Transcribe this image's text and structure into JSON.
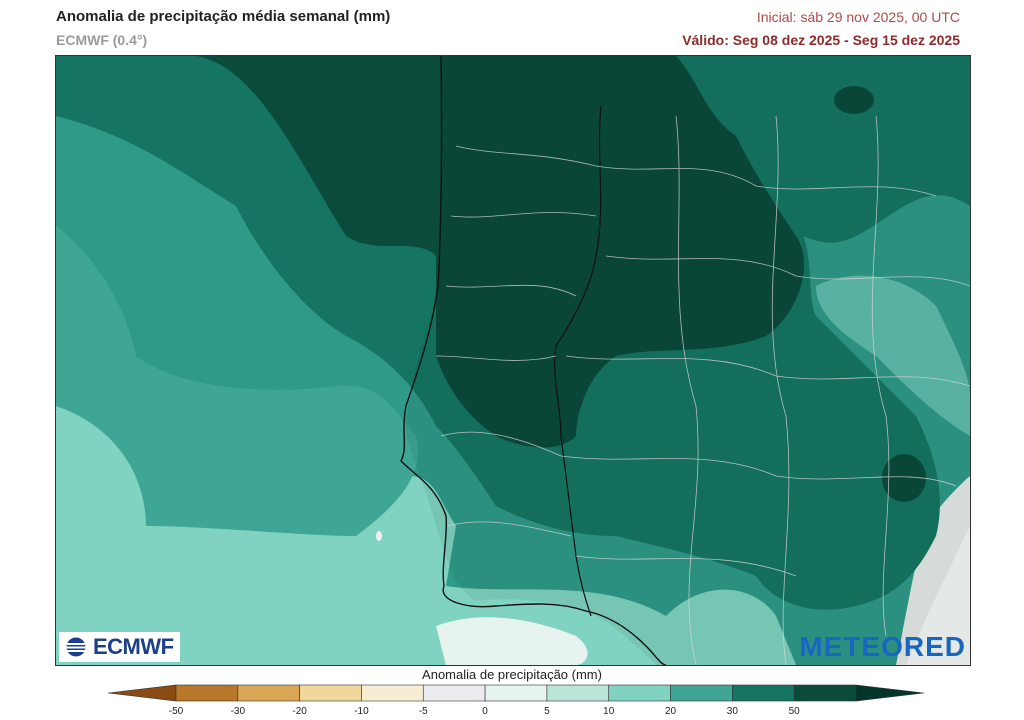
{
  "header": {
    "title": "Anomalia de precipitação média semanal (mm)",
    "model": "ECMWF (0.4°)",
    "initial": "Inicial:  sáb 29 nov 2025, 00 UTC",
    "valid": "Válido: Seg 08 dez 2025 - Seg 15 dez 2025"
  },
  "logos": {
    "left": "ECMWF",
    "right": "METEORED"
  },
  "legend": {
    "title": "Anomalia de precipitação (mm)",
    "ticks": [
      "-50",
      "-30",
      "-20",
      "-10",
      "-5",
      "0",
      "5",
      "10",
      "20",
      "30",
      "50"
    ],
    "colors": [
      "#8a4b12",
      "#b8772b",
      "#d9a656",
      "#efd89a",
      "#f6edd2",
      "#ececf0",
      "#e6f3ef",
      "#b9e6d8",
      "#7fd3c0",
      "#3fa594",
      "#157562",
      "#0b4b3c",
      "#04352a"
    ]
  }
}
